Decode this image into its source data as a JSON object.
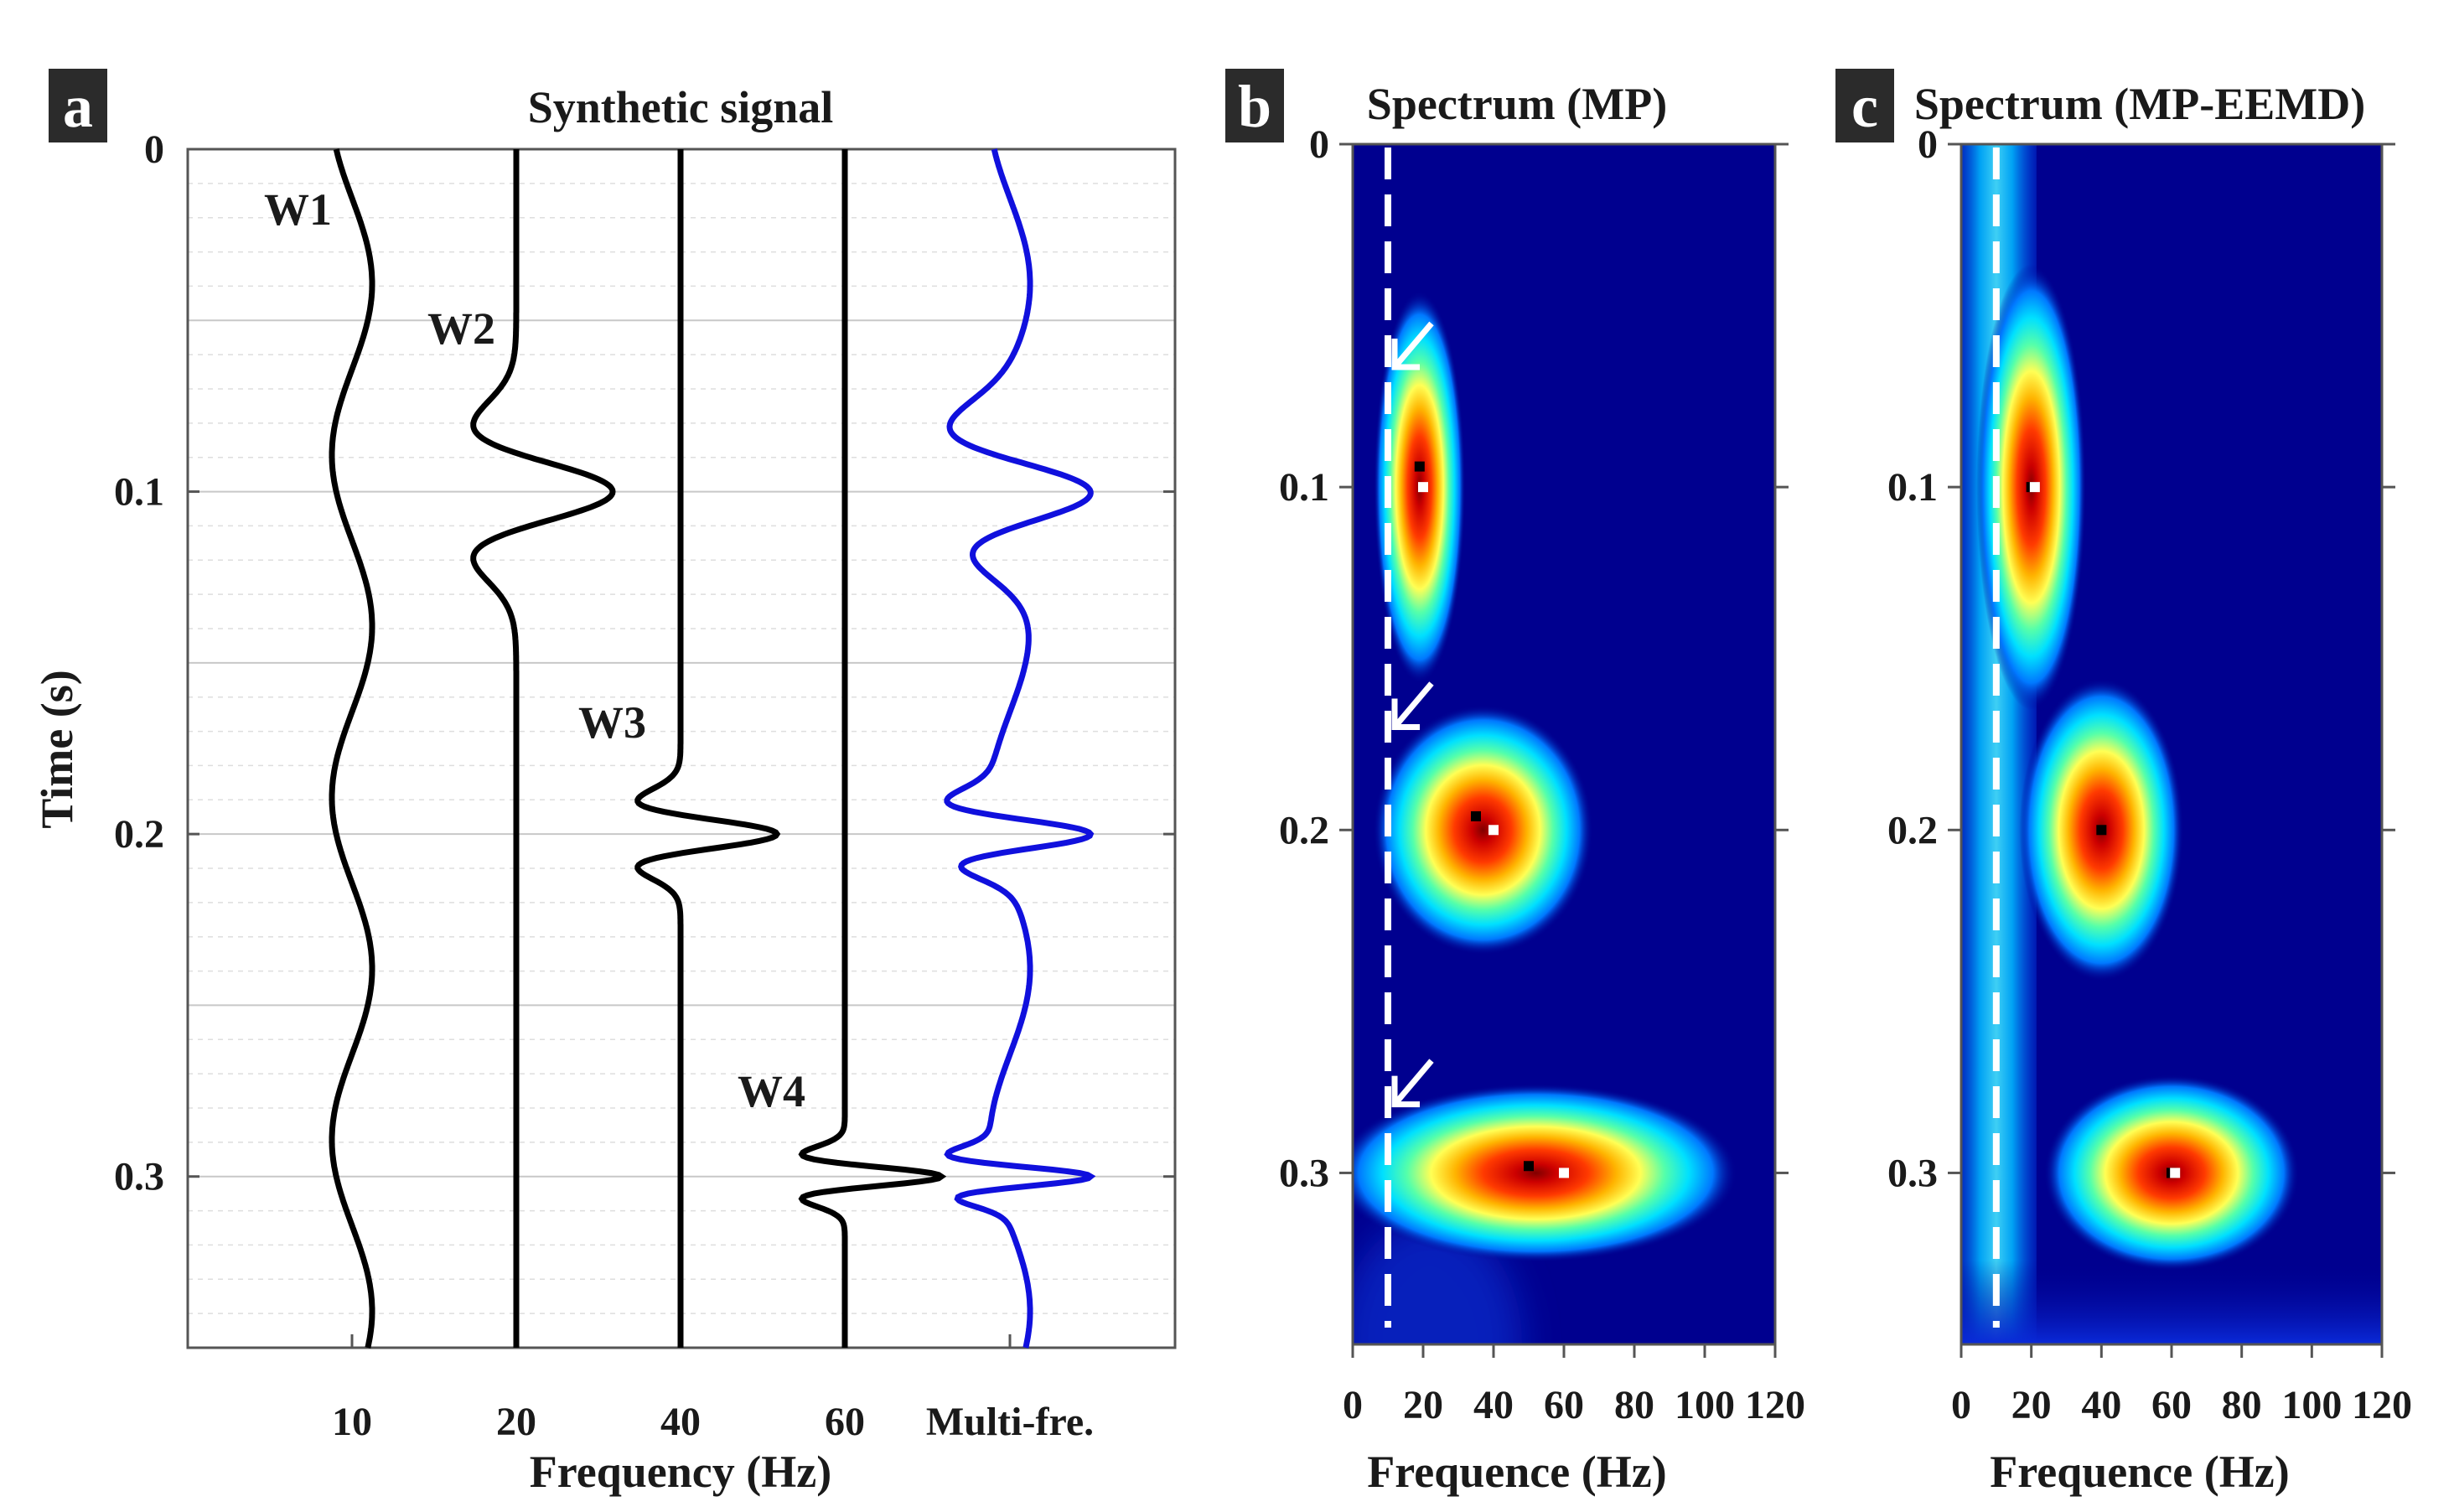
{
  "chart_data": [
    {
      "type": "line",
      "panel": "a",
      "title": "Synthetic signal",
      "xlabel": "Frequency (Hz)",
      "ylabel": "Time (s)",
      "ylim": [
        0,
        0.35
      ],
      "yticks": [
        "0",
        "0.1",
        "0.2",
        "0.3"
      ],
      "categories": [
        "10",
        "20",
        "40",
        "60",
        "Multi-fre."
      ],
      "series": [
        {
          "name": "W1",
          "frequency_hz": 10,
          "wavelet_time_s": null,
          "color": "#000000"
        },
        {
          "name": "W2",
          "frequency_hz": 20,
          "wavelet_time_s": 0.1,
          "color": "#000000"
        },
        {
          "name": "W3",
          "frequency_hz": 40,
          "wavelet_time_s": 0.2,
          "color": "#000000"
        },
        {
          "name": "W4",
          "frequency_hz": 60,
          "wavelet_time_s": 0.3,
          "color": "#000000"
        },
        {
          "name": "Multi-fre.",
          "frequency_hz": null,
          "wavelet_time_s": null,
          "color": "#1010dd"
        }
      ],
      "grid": true
    },
    {
      "type": "heatmap",
      "panel": "b",
      "title": "Spectrum (MP)",
      "xlabel": "Frequence (Hz)",
      "ylabel": "",
      "xlim": [
        0,
        120
      ],
      "ylim": [
        0,
        0.35
      ],
      "xticks": [
        "0",
        "20",
        "40",
        "60",
        "80",
        "100",
        "120"
      ],
      "yticks": [
        "0",
        "0.1",
        "0.2",
        "0.3"
      ],
      "dashed_line_hz": 10,
      "arrows_at_time_s": [
        0.065,
        0.17,
        0.28
      ],
      "blobs": [
        {
          "time_s": 0.1,
          "freq_hz": 19,
          "width_hz": 5,
          "height_s": 0.022
        },
        {
          "time_s": 0.2,
          "freq_hz": 37,
          "width_hz": 12,
          "height_s": 0.014
        },
        {
          "time_s": 0.3,
          "freq_hz": 52,
          "width_hz": 22,
          "height_s": 0.01
        }
      ],
      "markers": [
        {
          "time_s": 0.094,
          "freq_hz": 19,
          "color": "#000000"
        },
        {
          "time_s": 0.1,
          "freq_hz": 20,
          "color": "#ffffff"
        },
        {
          "time_s": 0.196,
          "freq_hz": 35,
          "color": "#000000"
        },
        {
          "time_s": 0.2,
          "freq_hz": 40,
          "color": "#ffffff"
        },
        {
          "time_s": 0.298,
          "freq_hz": 50,
          "color": "#000000"
        },
        {
          "time_s": 0.3,
          "freq_hz": 60,
          "color": "#ffffff"
        }
      ]
    },
    {
      "type": "heatmap",
      "panel": "c",
      "title": "Spectrum (MP-EEMD)",
      "xlabel": "Frequence (Hz)",
      "ylabel": "",
      "xlim": [
        0,
        120
      ],
      "ylim": [
        0,
        0.35
      ],
      "xticks": [
        "0",
        "20",
        "40",
        "60",
        "80",
        "100",
        "120"
      ],
      "yticks": [
        "0",
        "0.1",
        "0.2",
        "0.3"
      ],
      "dashed_line_hz": 10,
      "background_band_hz": 10,
      "blobs": [
        {
          "time_s": 0.1,
          "freq_hz": 20,
          "width_hz": 6,
          "height_s": 0.025
        },
        {
          "time_s": 0.2,
          "freq_hz": 40,
          "width_hz": 9,
          "height_s": 0.017
        },
        {
          "time_s": 0.3,
          "freq_hz": 60,
          "width_hz": 14,
          "height_s": 0.011
        }
      ],
      "markers": [
        {
          "time_s": 0.1,
          "freq_hz": 20,
          "color": "#000000"
        },
        {
          "time_s": 0.1,
          "freq_hz": 21,
          "color": "#ffffff"
        },
        {
          "time_s": 0.2,
          "freq_hz": 40,
          "color": "#000000"
        },
        {
          "time_s": 0.3,
          "freq_hz": 60,
          "color": "#000000"
        },
        {
          "time_s": 0.3,
          "freq_hz": 61,
          "color": "#ffffff"
        }
      ]
    }
  ]
}
